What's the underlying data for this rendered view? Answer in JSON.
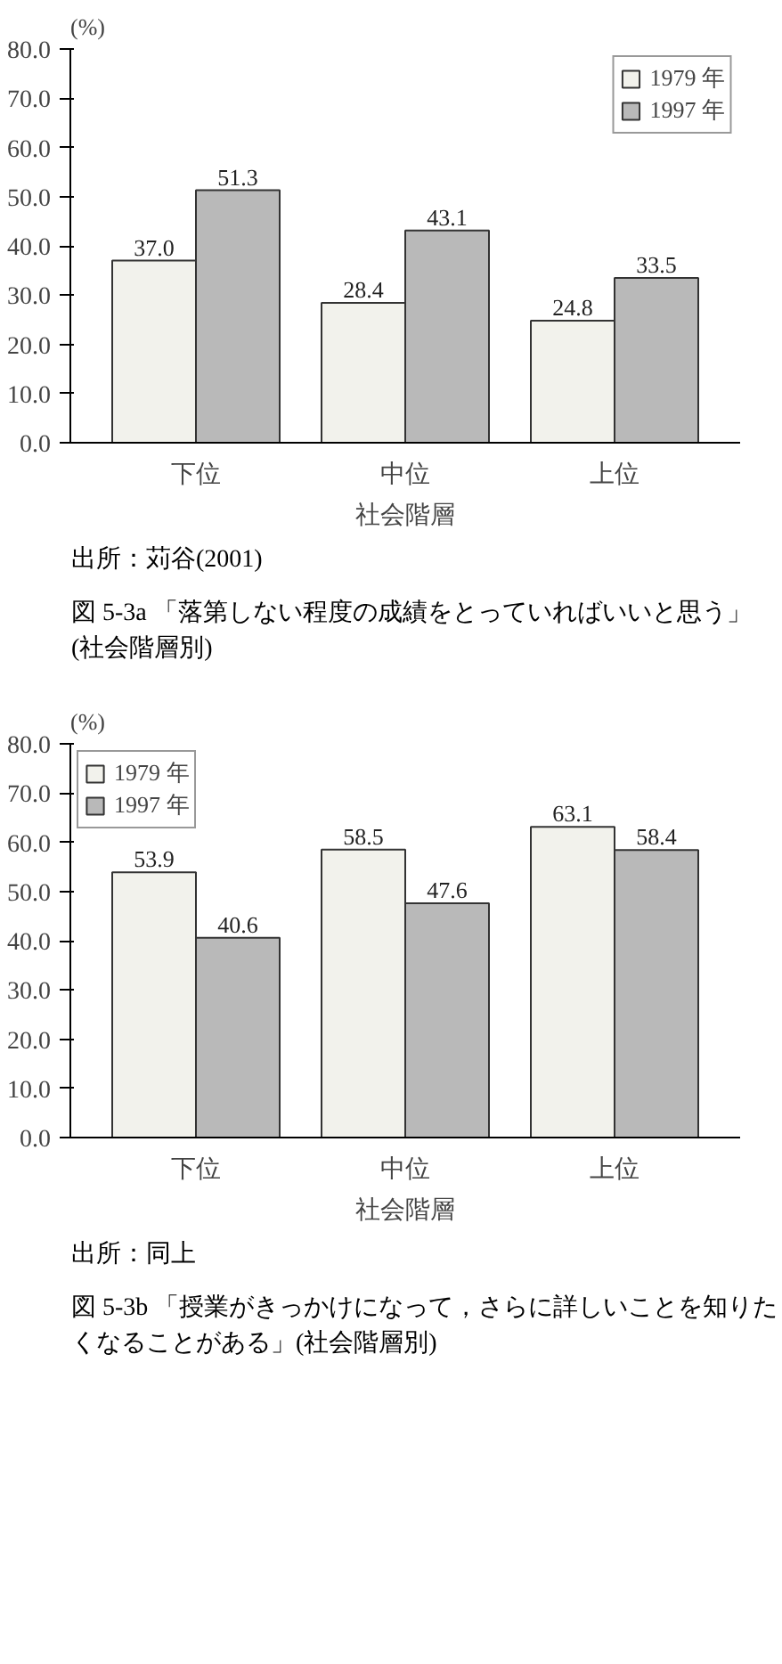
{
  "chart_data": [
    {
      "type": "bar",
      "ylabel": "(%)",
      "xlabel": "社会階層",
      "categories": [
        "下位",
        "中位",
        "上位"
      ],
      "series": [
        {
          "name": "1979 年",
          "color": "#f2f2ec",
          "values": [
            37.0,
            28.4,
            24.8
          ],
          "value_labels": [
            "37.0",
            "28.4",
            "24.8"
          ]
        },
        {
          "name": "1997 年",
          "color": "#b9b9b9",
          "values": [
            51.3,
            43.1,
            33.5
          ],
          "value_labels": [
            "51.3",
            "43.1",
            "33.5"
          ]
        }
      ],
      "ylim": [
        0,
        80
      ],
      "yticks": [
        {
          "value": 0,
          "label": "0.0"
        },
        {
          "value": 10,
          "label": "10.0"
        },
        {
          "value": 20,
          "label": "20.0"
        },
        {
          "value": 30,
          "label": "30.0"
        },
        {
          "value": 40,
          "label": "40.0"
        },
        {
          "value": 50,
          "label": "50.0"
        },
        {
          "value": 60,
          "label": "60.0"
        },
        {
          "value": 70,
          "label": "70.0"
        },
        {
          "value": 80,
          "label": "80.0"
        }
      ],
      "legend": "top right",
      "grid": false,
      "annotations": [
        "出所：苅谷(2001)",
        "図 5-3a 「落第しない程度の成績をとっていればいいと思う」(社会階層別)"
      ]
    },
    {
      "type": "bar",
      "ylabel": "(%)",
      "xlabel": "社会階層",
      "categories": [
        "下位",
        "中位",
        "上位"
      ],
      "series": [
        {
          "name": "1979 年",
          "color": "#f2f2ec",
          "values": [
            53.9,
            58.5,
            63.1
          ],
          "value_labels": [
            "53.9",
            "58.5",
            "63.1"
          ]
        },
        {
          "name": "1997 年",
          "color": "#b9b9b9",
          "values": [
            40.6,
            47.6,
            58.4
          ],
          "value_labels": [
            "40.6",
            "47.6",
            "58.4"
          ]
        }
      ],
      "ylim": [
        0,
        80
      ],
      "yticks": [
        {
          "value": 0,
          "label": "0.0"
        },
        {
          "value": 10,
          "label": "10.0"
        },
        {
          "value": 20,
          "label": "20.0"
        },
        {
          "value": 30,
          "label": "30.0"
        },
        {
          "value": 40,
          "label": "40.0"
        },
        {
          "value": 50,
          "label": "50.0"
        },
        {
          "value": 60,
          "label": "60.0"
        },
        {
          "value": 70,
          "label": "70.0"
        },
        {
          "value": 80,
          "label": "80.0"
        }
      ],
      "legend": "top left",
      "grid": false,
      "annotations": [
        "出所：同上",
        "図 5-3b 「授業がきっかけになって，さらに詳しいことを知りたくなることがある」(社会階層別)"
      ]
    }
  ]
}
